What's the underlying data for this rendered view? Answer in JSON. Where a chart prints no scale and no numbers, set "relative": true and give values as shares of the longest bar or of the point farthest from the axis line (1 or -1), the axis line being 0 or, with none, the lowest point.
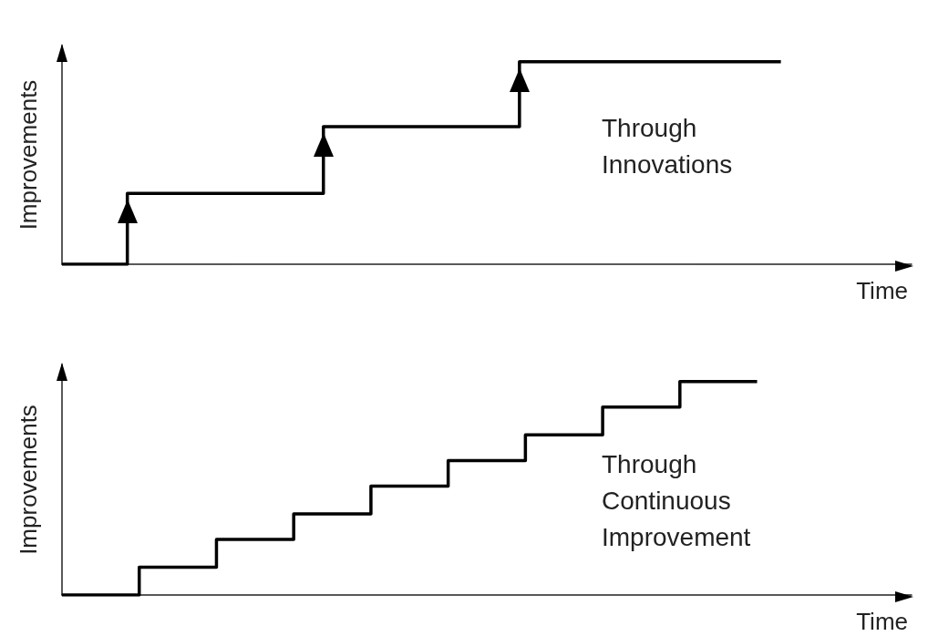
{
  "chart_data": [
    {
      "type": "step",
      "relative": true,
      "xlabel": "Time",
      "ylabel": "Improvements",
      "annotations": [
        "Through Innovations"
      ],
      "categories": [
        null,
        null,
        null,
        null,
        null,
        null,
        null,
        null,
        null,
        null,
        null,
        null
      ],
      "series": [
        {
          "color": "#000000",
          "values": [
            0,
            0.35,
            0.35,
            0.35,
            0.68,
            0.68,
            0.68,
            1,
            1,
            1,
            1,
            1
          ]
        }
      ]
    },
    {
      "type": "step",
      "relative": true,
      "xlabel": "Time",
      "ylabel": "Improvements",
      "annotations": [
        "Through Continuous Improvement"
      ],
      "categories": [
        null,
        null,
        null,
        null,
        null,
        null,
        null,
        null,
        null,
        null
      ],
      "series": [
        {
          "color": "#000000",
          "values": [
            0,
            0.13,
            0.26,
            0.38,
            0.51,
            0.63,
            0.75,
            0.88,
            1,
            1
          ]
        }
      ]
    }
  ]
}
